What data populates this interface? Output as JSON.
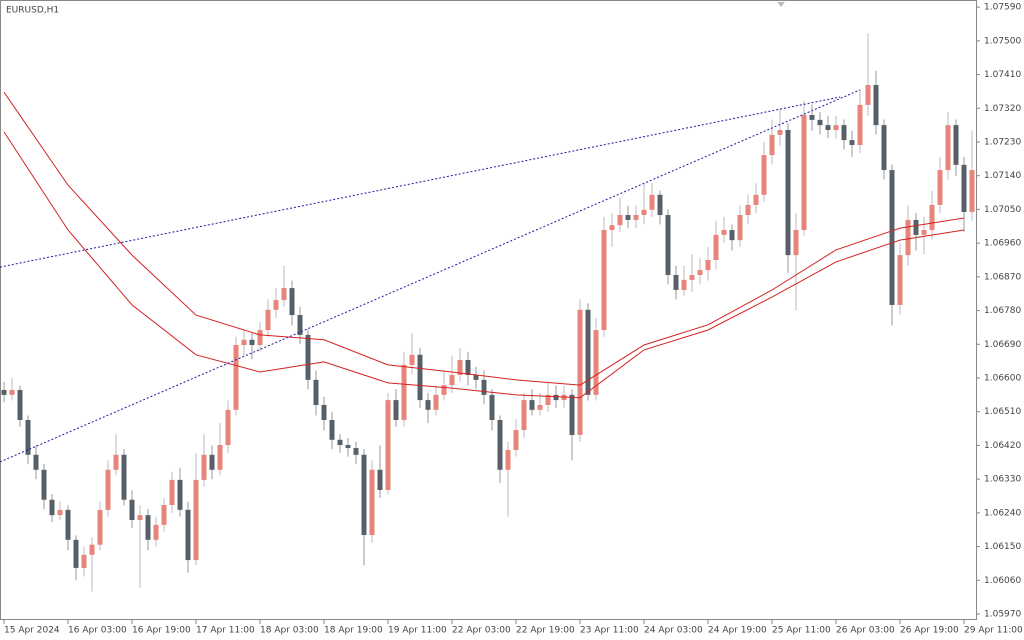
{
  "chart_data": {
    "type": "candlestick",
    "title": "EURUSD,H1",
    "ylim": [
      1.05954,
      1.07609
    ],
    "yticks": [
      {
        "value": 1.0759,
        "label": "1.07590"
      },
      {
        "value": 1.075,
        "label": "1.07500"
      },
      {
        "value": 1.0741,
        "label": "1.07410"
      },
      {
        "value": 1.0732,
        "label": "1.07320"
      },
      {
        "value": 1.0723,
        "label": "1.07230"
      },
      {
        "value": 1.0714,
        "label": "1.07140"
      },
      {
        "value": 1.0705,
        "label": "1.07050"
      },
      {
        "value": 1.0696,
        "label": "1.06960"
      },
      {
        "value": 1.0687,
        "label": "1.06870"
      },
      {
        "value": 1.0678,
        "label": "1.06780"
      },
      {
        "value": 1.0669,
        "label": "1.06690"
      },
      {
        "value": 1.066,
        "label": "1.06600"
      },
      {
        "value": 1.0651,
        "label": "1.06510"
      },
      {
        "value": 1.0642,
        "label": "1.06420"
      },
      {
        "value": 1.0633,
        "label": "1.06330"
      },
      {
        "value": 1.0624,
        "label": "1.06240"
      },
      {
        "value": 1.0615,
        "label": "1.06150"
      },
      {
        "value": 1.0606,
        "label": "1.06060"
      },
      {
        "value": 1.0597,
        "label": "1.05970"
      }
    ],
    "xlim": [
      -0.5,
      121.5
    ],
    "xticks": [
      {
        "value": 0,
        "label": "15 Apr 2024"
      },
      {
        "value": 8,
        "label": "16 Apr 03:00"
      },
      {
        "value": 16,
        "label": "16 Apr 19:00"
      },
      {
        "value": 24,
        "label": "17 Apr 11:00"
      },
      {
        "value": 32,
        "label": "18 Apr 03:00"
      },
      {
        "value": 40,
        "label": "18 Apr 19:00"
      },
      {
        "value": 48,
        "label": "19 Apr 11:00"
      },
      {
        "value": 56,
        "label": "22 Apr 03:00"
      },
      {
        "value": 64,
        "label": "22 Apr 19:00"
      },
      {
        "value": 72,
        "label": "23 Apr 11:00"
      },
      {
        "value": 80,
        "label": "24 Apr 03:00"
      },
      {
        "value": 88,
        "label": "24 Apr 19:00"
      },
      {
        "value": 96,
        "label": "25 Apr 11:00"
      },
      {
        "value": 104,
        "label": "26 Apr 03:00"
      },
      {
        "value": 112,
        "label": "26 Apr 19:00"
      },
      {
        "value": 120,
        "label": "29 Apr 11:00"
      }
    ],
    "up_color": "#e8847a",
    "down_color": "#566068",
    "candles": [
      [
        1.06568,
        1.0659,
        1.06535,
        1.06555
      ],
      [
        1.06555,
        1.066,
        1.0654,
        1.06568
      ],
      [
        1.06568,
        1.0658,
        1.0647,
        1.06488
      ],
      [
        1.06488,
        1.065,
        1.0637,
        1.06395
      ],
      [
        1.06395,
        1.0642,
        1.0633,
        1.06355
      ],
      [
        1.06355,
        1.0637,
        1.0625,
        1.06275
      ],
      [
        1.06275,
        1.0629,
        1.06215,
        1.06234
      ],
      [
        1.06234,
        1.0627,
        1.0622,
        1.06248
      ],
      [
        1.06248,
        1.0626,
        1.0614,
        1.06168
      ],
      [
        1.06168,
        1.0618,
        1.0606,
        1.06093
      ],
      [
        1.06093,
        1.0615,
        1.0607,
        1.06128
      ],
      [
        1.06128,
        1.06175,
        1.0603,
        1.06155
      ],
      [
        1.06155,
        1.0627,
        1.0614,
        1.06248
      ],
      [
        1.06248,
        1.0638,
        1.0623,
        1.06355
      ],
      [
        1.06355,
        1.0645,
        1.0634,
        1.06395
      ],
      [
        1.06395,
        1.0641,
        1.0626,
        1.06275
      ],
      [
        1.06275,
        1.063,
        1.062,
        1.06221
      ],
      [
        1.06221,
        1.0626,
        1.0604,
        1.06234
      ],
      [
        1.06234,
        1.0625,
        1.0614,
        1.06168
      ],
      [
        1.06168,
        1.0623,
        1.0615,
        1.06208
      ],
      [
        1.06208,
        1.0628,
        1.0619,
        1.06261
      ],
      [
        1.06261,
        1.0635,
        1.0624,
        1.06328
      ],
      [
        1.06328,
        1.0636,
        1.0623,
        1.06248
      ],
      [
        1.06248,
        1.0627,
        1.0608,
        1.06114
      ],
      [
        1.06114,
        1.064,
        1.061,
        1.06328
      ],
      [
        1.06328,
        1.0645,
        1.0631,
        1.06395
      ],
      [
        1.06395,
        1.0642,
        1.0633,
        1.06355
      ],
      [
        1.06355,
        1.0648,
        1.0634,
        1.06421
      ],
      [
        1.06421,
        1.0654,
        1.064,
        1.06515
      ],
      [
        1.06515,
        1.0671,
        1.065,
        1.06688
      ],
      [
        1.06688,
        1.0673,
        1.0666,
        1.06702
      ],
      [
        1.06702,
        1.0672,
        1.0665,
        1.06688
      ],
      [
        1.06688,
        1.0675,
        1.0667,
        1.06728
      ],
      [
        1.06728,
        1.0681,
        1.0671,
        1.06782
      ],
      [
        1.06782,
        1.0684,
        1.0676,
        1.06808
      ],
      [
        1.06808,
        1.069,
        1.0679,
        1.0684
      ],
      [
        1.0684,
        1.0686,
        1.0674,
        1.06768
      ],
      [
        1.06768,
        1.0679,
        1.0669,
        1.06715
      ],
      [
        1.06715,
        1.0673,
        1.0657,
        1.06595
      ],
      [
        1.06595,
        1.0662,
        1.065,
        1.06528
      ],
      [
        1.06528,
        1.0655,
        1.0646,
        1.06488
      ],
      [
        1.06488,
        1.0651,
        1.0641,
        1.06435
      ],
      [
        1.06435,
        1.0645,
        1.064,
        1.06421
      ],
      [
        1.06421,
        1.0644,
        1.0639,
        1.06413
      ],
      [
        1.06413,
        1.0643,
        1.0637,
        1.06395
      ],
      [
        1.06395,
        1.0641,
        1.061,
        1.06181
      ],
      [
        1.06181,
        1.0638,
        1.0616,
        1.06355
      ],
      [
        1.06355,
        1.0642,
        1.0628,
        1.06301
      ],
      [
        1.06301,
        1.0656,
        1.0629,
        1.06541
      ],
      [
        1.06541,
        1.0657,
        1.0647,
        1.06488
      ],
      [
        1.06488,
        1.0667,
        1.0647,
        1.06635
      ],
      [
        1.06635,
        1.0672,
        1.0661,
        1.06662
      ],
      [
        1.06662,
        1.0668,
        1.0652,
        1.06541
      ],
      [
        1.06541,
        1.0656,
        1.0648,
        1.06515
      ],
      [
        1.06515,
        1.0658,
        1.065,
        1.06555
      ],
      [
        1.06555,
        1.0662,
        1.0654,
        1.06581
      ],
      [
        1.06581,
        1.0666,
        1.0656,
        1.06608
      ],
      [
        1.06608,
        1.0668,
        1.0659,
        1.06648
      ],
      [
        1.06648,
        1.0667,
        1.0658,
        1.06608
      ],
      [
        1.06608,
        1.0663,
        1.0657,
        1.06595
      ],
      [
        1.06595,
        1.0662,
        1.0653,
        1.06555
      ],
      [
        1.06555,
        1.0657,
        1.0646,
        1.06488
      ],
      [
        1.06488,
        1.065,
        1.0632,
        1.06355
      ],
      [
        1.06355,
        1.0643,
        1.0623,
        1.06408
      ],
      [
        1.06408,
        1.0649,
        1.0639,
        1.06461
      ],
      [
        1.06461,
        1.0656,
        1.0644,
        1.06541
      ],
      [
        1.06541,
        1.0657,
        1.065,
        1.06515
      ],
      [
        1.06515,
        1.0656,
        1.065,
        1.06528
      ],
      [
        1.06528,
        1.0659,
        1.0651,
        1.06555
      ],
      [
        1.06555,
        1.0658,
        1.0652,
        1.06541
      ],
      [
        1.06541,
        1.0658,
        1.0652,
        1.06555
      ],
      [
        1.06555,
        1.0657,
        1.0638,
        1.06448
      ],
      [
        1.06448,
        1.0681,
        1.0643,
        1.06782
      ],
      [
        1.06782,
        1.068,
        1.0654,
        1.06555
      ],
      [
        1.06555,
        1.0676,
        1.0654,
        1.06728
      ],
      [
        1.06728,
        1.0703,
        1.0671,
        1.06995
      ],
      [
        1.06995,
        1.0704,
        1.0695,
        1.07008
      ],
      [
        1.07008,
        1.0708,
        1.0699,
        1.07035
      ],
      [
        1.07035,
        1.0706,
        1.07,
        1.07022
      ],
      [
        1.07022,
        1.0706,
        1.07,
        1.07035
      ],
      [
        1.07035,
        1.0712,
        1.0701,
        1.07049
      ],
      [
        1.07049,
        1.0712,
        1.0703,
        1.07089
      ],
      [
        1.07089,
        1.071,
        1.0701,
        1.07035
      ],
      [
        1.07035,
        1.0705,
        1.0685,
        1.06875
      ],
      [
        1.06875,
        1.069,
        1.0681,
        1.06835
      ],
      [
        1.06835,
        1.069,
        1.0682,
        1.06862
      ],
      [
        1.06862,
        1.0693,
        1.0683,
        1.06875
      ],
      [
        1.06875,
        1.0692,
        1.0685,
        1.06888
      ],
      [
        1.06888,
        1.0695,
        1.0686,
        1.06915
      ],
      [
        1.06915,
        1.0702,
        1.0689,
        1.06982
      ],
      [
        1.06982,
        1.0703,
        1.0696,
        1.06995
      ],
      [
        1.06995,
        1.0701,
        1.0694,
        1.06968
      ],
      [
        1.06968,
        1.0706,
        1.0695,
        1.07035
      ],
      [
        1.07035,
        1.0709,
        1.0701,
        1.07062
      ],
      [
        1.07062,
        1.0712,
        1.0704,
        1.07089
      ],
      [
        1.07089,
        1.0723,
        1.0707,
        1.07195
      ],
      [
        1.07195,
        1.0729,
        1.0717,
        1.07249
      ],
      [
        1.07249,
        1.0732,
        1.0722,
        1.07262
      ],
      [
        1.07262,
        1.0728,
        1.0688,
        1.06928
      ],
      [
        1.06928,
        1.0704,
        1.0678,
        1.06995
      ],
      [
        1.06995,
        1.0734,
        1.0698,
        1.07302
      ],
      [
        1.07302,
        1.0733,
        1.0726,
        1.07289
      ],
      [
        1.07289,
        1.0731,
        1.0725,
        1.07275
      ],
      [
        1.07275,
        1.073,
        1.0724,
        1.07262
      ],
      [
        1.07262,
        1.073,
        1.0724,
        1.07275
      ],
      [
        1.07275,
        1.0729,
        1.0721,
        1.07235
      ],
      [
        1.07235,
        1.0726,
        1.0719,
        1.07222
      ],
      [
        1.07222,
        1.0737,
        1.072,
        1.07329
      ],
      [
        1.07329,
        1.0752,
        1.073,
        1.07382
      ],
      [
        1.07382,
        1.0742,
        1.0725,
        1.07275
      ],
      [
        1.07275,
        1.0729,
        1.0713,
        1.07155
      ],
      [
        1.07155,
        1.0717,
        1.0674,
        1.06795
      ],
      [
        1.06795,
        1.0696,
        1.0677,
        1.06928
      ],
      [
        1.06928,
        1.0706,
        1.069,
        1.07022
      ],
      [
        1.07022,
        1.0704,
        1.0694,
        1.06982
      ],
      [
        1.06982,
        1.0703,
        1.0693,
        1.06995
      ],
      [
        1.06995,
        1.071,
        1.0697,
        1.07062
      ],
      [
        1.07062,
        1.0719,
        1.0704,
        1.07155
      ],
      [
        1.07155,
        1.0731,
        1.0713,
        1.07275
      ],
      [
        1.07275,
        1.0729,
        1.0714,
        1.07169
      ],
      [
        1.07169,
        1.0719,
        1.0699,
        1.07043
      ],
      [
        1.07043,
        1.0726,
        1.0702,
        1.07155
      ]
    ],
    "lines": [
      {
        "color": "#d42020",
        "style": "solid",
        "x": [
          0,
          8,
          16,
          24,
          32,
          40,
          48,
          56,
          64,
          72,
          80,
          88,
          96,
          104,
          112,
          120
        ],
        "values": [
          1.07363,
          1.07115,
          1.06928,
          1.06768,
          1.06715,
          1.06702,
          1.06635,
          1.06616,
          1.06595,
          1.06581,
          1.06688,
          1.06742,
          1.06835,
          1.06942,
          1.07,
          1.07027
        ]
      },
      {
        "color": "#d42020",
        "style": "solid",
        "x": [
          0,
          8,
          16,
          24,
          32,
          40,
          48,
          56,
          64,
          72,
          80,
          88,
          96,
          104,
          112,
          120
        ],
        "values": [
          1.07257,
          1.06995,
          1.06795,
          1.06662,
          1.06616,
          1.06643,
          1.06587,
          1.06573,
          1.06555,
          1.06547,
          1.06675,
          1.06728,
          1.06816,
          1.0691,
          1.06968,
          1.06995
        ]
      },
      {
        "color": "#1a1aa0",
        "style": "dotted",
        "x": [
          -0.5,
          104.5
        ],
        "values": [
          1.06896,
          1.0735
        ]
      },
      {
        "color": "#1a1aa0",
        "style": "dotted",
        "x": [
          -0.5,
          107
        ],
        "values": [
          1.06376,
          1.07369
        ]
      }
    ]
  }
}
